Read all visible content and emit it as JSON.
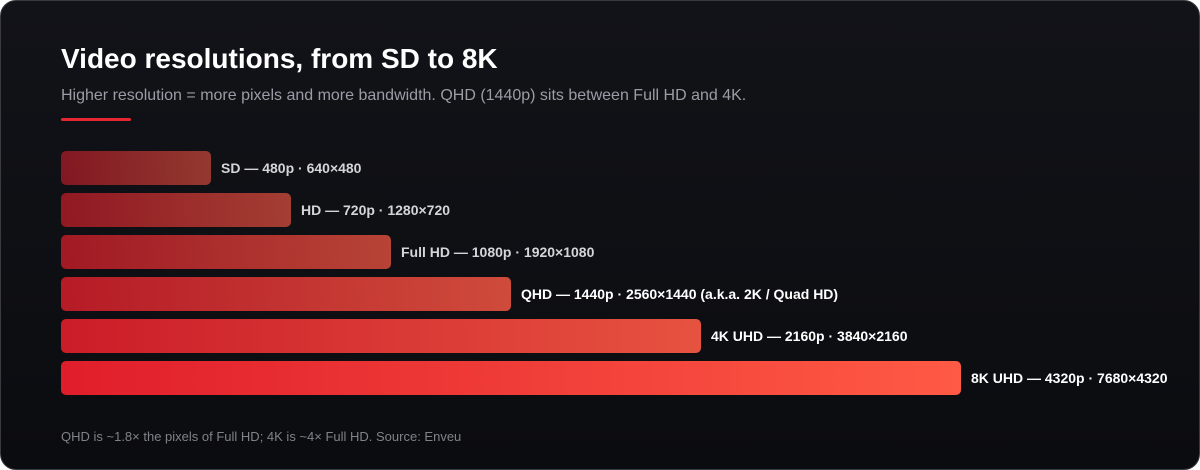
{
  "header": {
    "title": "Video resolutions, from SD to 8K",
    "subtitle": "Higher resolution = more pixels and more bandwidth. QHD (1440p) sits between Full HD and 4K."
  },
  "bars": [
    {
      "label": "SD — 480p · 640×480"
    },
    {
      "label": "HD — 720p · 1280×720"
    },
    {
      "label": "Full HD — 1080p · 1920×1080"
    },
    {
      "label": "QHD — 1440p · 2560×1440 (a.k.a. 2K / Quad HD)"
    },
    {
      "label": "4K UHD — 2160p · 3840×2160"
    },
    {
      "label": "8K UHD — 4320p · 7680×4320"
    }
  ],
  "footnote": "QHD is ~1.8× the pixels of Full HD; 4K is ~4× Full HD. Source: Enveu"
}
